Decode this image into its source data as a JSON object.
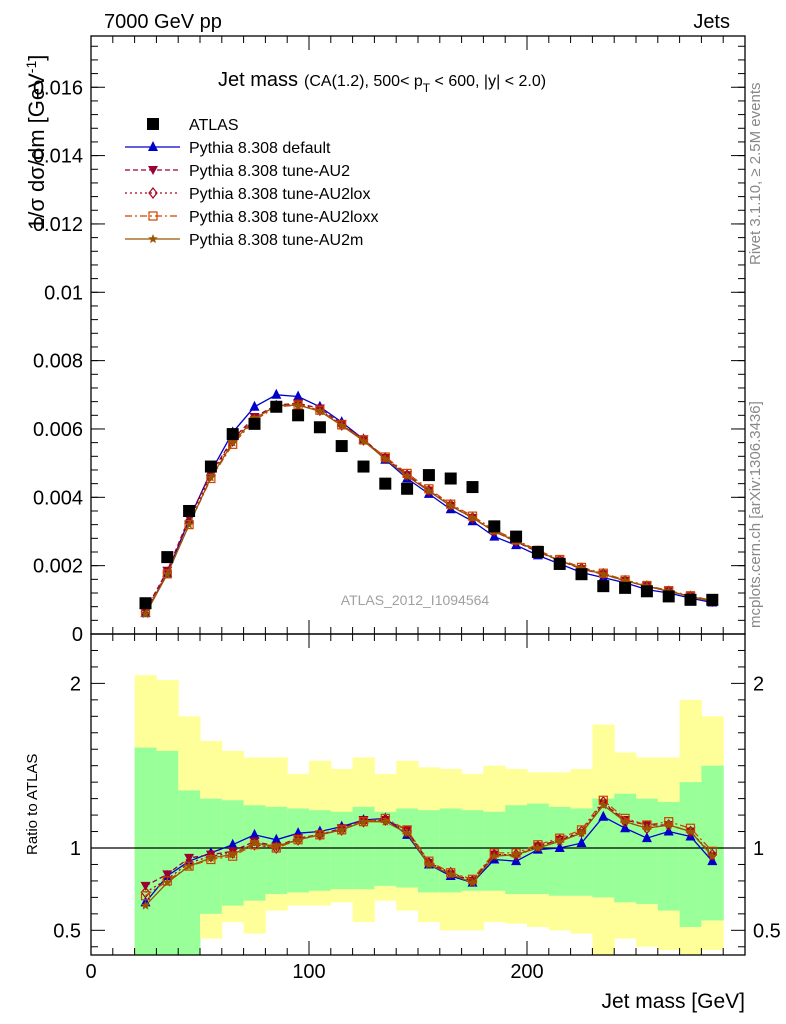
{
  "header": {
    "left": "7000 GeV pp",
    "right": "Jets"
  },
  "side_text": {
    "rivet": "Rivet 3.1.10, ≥ 2.5M events",
    "source": "mcplots.cern.ch [arXiv:1306.3436]"
  },
  "colors": {
    "atlas": "#000000",
    "default": "#0000cc",
    "AU2": "#990033",
    "AU2lox": "#aa0022",
    "AU2loxx": "#cc4400",
    "AU2m": "#995500",
    "band_inner": "#99ff99",
    "band_outer": "#ffff99"
  },
  "chart_data": [
    {
      "type": "line",
      "panel": "main",
      "title_main": "Jet mass",
      "title_cond": "(CA(1.2), 500< p",
      "title_sub": "T",
      "title_tail": " < 600, |y| < 2.0)",
      "ylabel": "1/σ dσ/dm [GeV",
      "ylabel_sup": "-1",
      "ylabel_close": "]",
      "watermark": "ATLAS_2012_I1094564",
      "xlim": [
        0,
        300
      ],
      "ylim": [
        0,
        0.0175
      ],
      "yticks": [
        0,
        0.002,
        0.004,
        0.006,
        0.008,
        0.01,
        0.012,
        0.014,
        0.016
      ],
      "ytick_labels": [
        "0",
        "0.002",
        "0.004",
        "0.006",
        "0.008",
        "0.01",
        "0.012",
        "0.014",
        "0.016"
      ],
      "x": [
        25,
        35,
        45,
        55,
        65,
        75,
        85,
        95,
        105,
        115,
        125,
        135,
        145,
        155,
        165,
        175,
        185,
        195,
        205,
        215,
        225,
        235,
        245,
        255,
        265,
        275,
        285
      ],
      "series": [
        {
          "name": "ATLAS",
          "key": "atlas",
          "marker": "square",
          "values": [
            0.0009,
            0.00225,
            0.0036,
            0.0049,
            0.00585,
            0.00615,
            0.00665,
            0.0064,
            0.00605,
            0.0055,
            0.0049,
            0.0044,
            0.00425,
            0.00465,
            0.00455,
            0.0043,
            0.00315,
            0.00285,
            0.0024,
            0.00205,
            0.00175,
            0.0014,
            0.00135,
            0.00125,
            0.0011,
            0.001,
            0.001
          ]
        },
        {
          "name": "Pythia 8.308 default",
          "key": "default",
          "marker": "triangle-up",
          "values": [
            0.00061,
            0.00178,
            0.00335,
            0.00475,
            0.0059,
            0.00665,
            0.007,
            0.00695,
            0.00665,
            0.0062,
            0.0057,
            0.0051,
            0.00455,
            0.0041,
            0.00365,
            0.0033,
            0.00285,
            0.0026,
            0.0023,
            0.00205,
            0.0018,
            0.00165,
            0.0015,
            0.0013,
            0.0012,
            0.00105,
            0.00092
          ]
        },
        {
          "name": "Pythia 8.308 tune-AU2",
          "key": "AU2",
          "marker": "triangle-down",
          "values": [
            0.0007,
            0.00185,
            0.0034,
            0.0047,
            0.0057,
            0.00635,
            0.0067,
            0.00675,
            0.0066,
            0.00615,
            0.0057,
            0.00515,
            0.00465,
            0.0042,
            0.00375,
            0.0034,
            0.003,
            0.0027,
            0.0024,
            0.00215,
            0.0019,
            0.00175,
            0.00155,
            0.0014,
            0.00125,
            0.0011,
            0.00095
          ]
        },
        {
          "name": "Pythia 8.308 tune-AU2lox",
          "key": "AU2lox",
          "marker": "diamond-open",
          "values": [
            0.00066,
            0.0018,
            0.0033,
            0.00465,
            0.00565,
            0.0063,
            0.00668,
            0.00672,
            0.00655,
            0.00612,
            0.00568,
            0.00515,
            0.00465,
            0.0042,
            0.00378,
            0.0034,
            0.00302,
            0.00272,
            0.00242,
            0.00215,
            0.00192,
            0.00176,
            0.00156,
            0.0014,
            0.00125,
            0.0011,
            0.00096
          ]
        },
        {
          "name": "Pythia 8.308 tune-AU2loxx",
          "key": "AU2loxx",
          "marker": "square-open",
          "values": [
            0.00064,
            0.00176,
            0.0032,
            0.00455,
            0.00555,
            0.00625,
            0.00665,
            0.0067,
            0.00655,
            0.00612,
            0.00568,
            0.00518,
            0.0047,
            0.00425,
            0.0038,
            0.00345,
            0.00305,
            0.00275,
            0.00245,
            0.00218,
            0.00195,
            0.00178,
            0.00158,
            0.00142,
            0.00127,
            0.00112,
            0.00098
          ]
        },
        {
          "name": "Pythia 8.308 tune-AU2m",
          "key": "AU2m",
          "marker": "star",
          "values": [
            0.00058,
            0.00175,
            0.0032,
            0.00458,
            0.0056,
            0.0063,
            0.00668,
            0.0067,
            0.00652,
            0.0061,
            0.00565,
            0.00512,
            0.00462,
            0.00418,
            0.00375,
            0.0034,
            0.003,
            0.00272,
            0.00242,
            0.00215,
            0.00192,
            0.00175,
            0.00156,
            0.0014,
            0.00125,
            0.0011,
            0.00095
          ]
        }
      ]
    },
    {
      "type": "line",
      "panel": "ratio",
      "ylabel": "Ratio to ATLAS",
      "xlabel": "Jet mass [GeV]",
      "xlim": [
        0,
        300
      ],
      "ylim": [
        0.35,
        2.3
      ],
      "xticks": [
        0,
        100,
        200
      ],
      "xtick_labels": [
        "0",
        "100",
        "200"
      ],
      "yticks": [
        0.5,
        1,
        2
      ],
      "ytick_labels": [
        "0.5",
        "1",
        "2"
      ],
      "reference_line": 1,
      "bin_edges": [
        20,
        30,
        40,
        50,
        60,
        70,
        80,
        90,
        100,
        110,
        120,
        130,
        140,
        150,
        160,
        170,
        180,
        190,
        200,
        210,
        220,
        230,
        240,
        250,
        260,
        270,
        280,
        290
      ],
      "band_inner": {
        "lower": [
          0.3,
          0.3,
          0.3,
          0.6,
          0.65,
          0.68,
          0.72,
          0.73,
          0.74,
          0.75,
          0.75,
          0.77,
          0.76,
          0.73,
          0.73,
          0.74,
          0.74,
          0.72,
          0.72,
          0.71,
          0.71,
          0.7,
          0.67,
          0.66,
          0.62,
          0.52,
          0.56
        ],
        "upper": [
          1.61,
          1.59,
          1.35,
          1.3,
          1.29,
          1.26,
          1.25,
          1.24,
          1.23,
          1.22,
          1.25,
          1.22,
          1.24,
          1.23,
          1.24,
          1.23,
          1.22,
          1.26,
          1.27,
          1.25,
          1.24,
          1.3,
          1.33,
          1.3,
          1.28,
          1.4,
          1.5
        ]
      },
      "band_outer": {
        "lower": [
          0.3,
          0.3,
          0.55,
          0.45,
          0.55,
          0.48,
          0.62,
          0.65,
          0.65,
          0.67,
          0.55,
          0.68,
          0.62,
          0.55,
          0.5,
          0.5,
          0.55,
          0.54,
          0.52,
          0.5,
          0.48,
          0.35,
          0.45,
          0.4,
          0.38,
          0.35,
          0.38
        ],
        "upper": [
          2.05,
          2.02,
          1.8,
          1.65,
          1.59,
          1.55,
          1.55,
          1.45,
          1.53,
          1.48,
          1.55,
          1.45,
          1.53,
          1.49,
          1.48,
          1.45,
          1.5,
          1.48,
          1.46,
          1.46,
          1.48,
          1.75,
          1.58,
          1.55,
          1.55,
          1.9,
          1.8
        ]
      },
      "x": [
        25,
        35,
        45,
        55,
        65,
        75,
        85,
        95,
        105,
        115,
        125,
        135,
        145,
        155,
        165,
        175,
        185,
        195,
        205,
        215,
        225,
        235,
        245,
        255,
        265,
        275,
        285
      ],
      "series": [
        {
          "name": "Pythia 8.308 default",
          "key": "default",
          "marker": "triangle-up",
          "values": [
            0.67,
            0.83,
            0.92,
            0.97,
            1.02,
            1.08,
            1.05,
            1.09,
            1.1,
            1.13,
            1.17,
            1.18,
            1.08,
            0.9,
            0.83,
            0.79,
            0.93,
            0.92,
            0.99,
            1.0,
            1.03,
            1.19,
            1.12,
            1.06,
            1.1,
            1.07,
            0.92
          ]
        },
        {
          "name": "Pythia 8.308 tune-AU2",
          "key": "AU2",
          "marker": "triangle-down",
          "values": [
            0.77,
            0.84,
            0.94,
            0.96,
            0.98,
            1.04,
            1.01,
            1.06,
            1.08,
            1.12,
            1.17,
            1.17,
            1.11,
            0.91,
            0.84,
            0.8,
            0.96,
            0.95,
            1.01,
            1.05,
            1.09,
            1.27,
            1.17,
            1.14,
            1.14,
            1.1,
            0.95
          ]
        },
        {
          "name": "Pythia 8.308 tune-AU2lox",
          "key": "AU2lox",
          "marker": "diamond-open",
          "values": [
            0.73,
            0.81,
            0.91,
            0.95,
            0.97,
            1.02,
            1.0,
            1.05,
            1.08,
            1.11,
            1.16,
            1.17,
            1.1,
            0.91,
            0.85,
            0.8,
            0.96,
            0.96,
            1.01,
            1.05,
            1.1,
            1.28,
            1.16,
            1.12,
            1.14,
            1.1,
            0.96
          ]
        },
        {
          "name": "Pythia 8.308 tune-AU2loxx",
          "key": "AU2loxx",
          "marker": "square-open",
          "values": [
            0.71,
            0.8,
            0.89,
            0.93,
            0.95,
            1.02,
            1.0,
            1.05,
            1.08,
            1.11,
            1.16,
            1.18,
            1.11,
            0.92,
            0.85,
            0.81,
            0.97,
            0.97,
            1.02,
            1.06,
            1.11,
            1.29,
            1.18,
            1.14,
            1.16,
            1.12,
            0.98
          ]
        },
        {
          "name": "Pythia 8.308 tune-AU2m",
          "key": "AU2m",
          "marker": "star",
          "values": [
            0.65,
            0.79,
            0.89,
            0.94,
            0.96,
            1.03,
            1.01,
            1.05,
            1.08,
            1.11,
            1.16,
            1.16,
            1.09,
            0.9,
            0.84,
            0.79,
            0.95,
            0.96,
            1.0,
            1.04,
            1.09,
            1.26,
            1.16,
            1.12,
            1.14,
            1.1,
            0.95
          ]
        }
      ]
    }
  ]
}
